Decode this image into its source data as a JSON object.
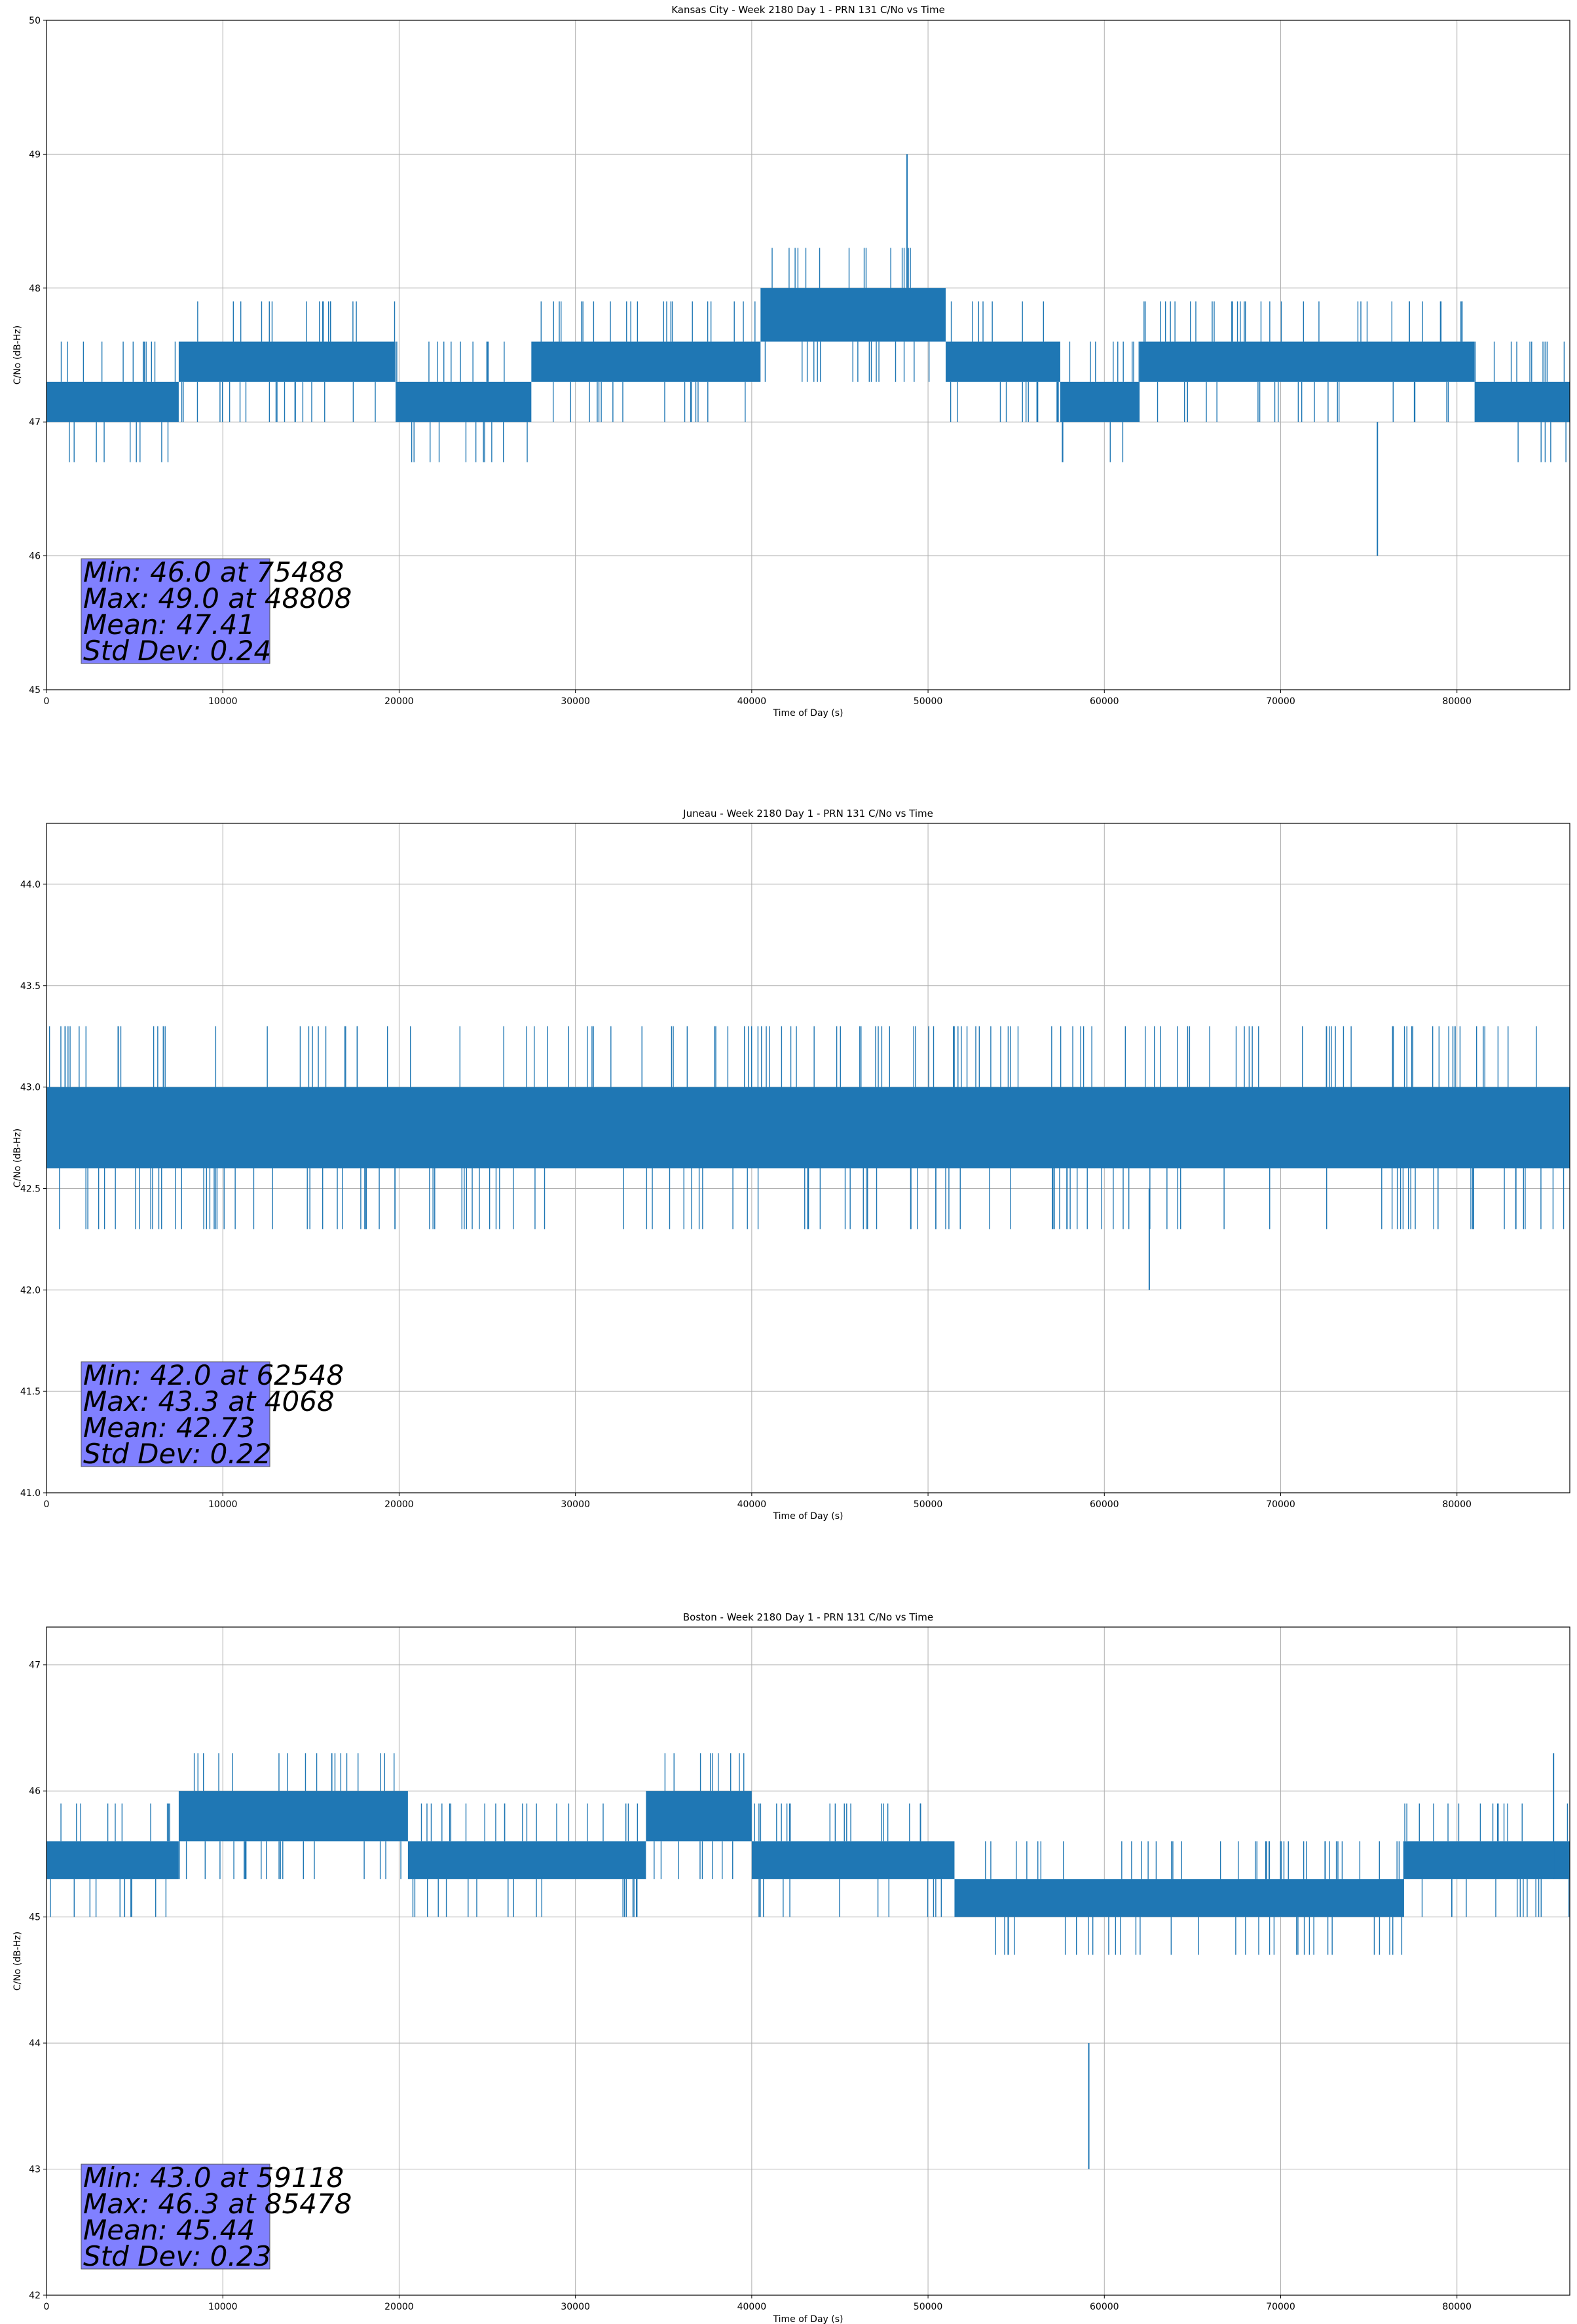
{
  "colors": {
    "series": "#1f77b4",
    "stats_box": "#8080ff",
    "grid": "#b0b0b0"
  },
  "chart_data": [
    {
      "type": "line",
      "title": "Kansas City - Week 2180 Day 1 - PRN 131 C/No vs Time",
      "xlabel": "Time of Day (s)",
      "ylabel": "C/No (dB-Hz)",
      "xlim": [
        0,
        86400
      ],
      "ylim": [
        45,
        50
      ],
      "xticks": [
        0,
        10000,
        20000,
        30000,
        40000,
        50000,
        60000,
        70000,
        80000
      ],
      "xtick_labels": [
        "0",
        "10000",
        "20000",
        "30000",
        "40000",
        "50000",
        "60000",
        "70000",
        "80000"
      ],
      "yticks": [
        45,
        46,
        47,
        48,
        49,
        50
      ],
      "ytick_labels": [
        "45",
        "46",
        "47",
        "48",
        "49",
        "50"
      ],
      "grid": true,
      "series": [
        {
          "name": "C/No",
          "segments": [
            {
              "x_start": 0,
              "x_end": 7500,
              "low": 47.0,
              "high": 47.3
            },
            {
              "x_start": 7500,
              "x_end": 19800,
              "low": 47.3,
              "high": 47.6
            },
            {
              "x_start": 19800,
              "x_end": 27500,
              "low": 47.0,
              "high": 47.3
            },
            {
              "x_start": 27500,
              "x_end": 40500,
              "low": 47.3,
              "high": 47.6
            },
            {
              "x_start": 40500,
              "x_end": 51000,
              "low": 47.6,
              "high": 48.0
            },
            {
              "x_start": 51000,
              "x_end": 57500,
              "low": 47.3,
              "high": 47.6
            },
            {
              "x_start": 57500,
              "x_end": 62000,
              "low": 47.0,
              "high": 47.3
            },
            {
              "x_start": 62000,
              "x_end": 81000,
              "low": 47.3,
              "high": 47.6
            },
            {
              "x_start": 81000,
              "x_end": 86400,
              "low": 47.0,
              "high": 47.3
            }
          ]
        }
      ],
      "stats": [
        "Min: 46.0 at 75488",
        "Max: 49.0 at 48808",
        "Mean: 47.41",
        "Std Dev: 0.24"
      ]
    },
    {
      "type": "line",
      "title": "Juneau - Week 2180 Day 1 - PRN 131 C/No vs Time",
      "xlabel": "Time of Day (s)",
      "ylabel": "C/No (dB-Hz)",
      "xlim": [
        0,
        86400
      ],
      "ylim": [
        41.0,
        44.3
      ],
      "xticks": [
        0,
        10000,
        20000,
        30000,
        40000,
        50000,
        60000,
        70000,
        80000
      ],
      "xtick_labels": [
        "0",
        "10000",
        "20000",
        "30000",
        "40000",
        "50000",
        "60000",
        "70000",
        "80000"
      ],
      "yticks": [
        41.0,
        41.5,
        42.0,
        42.5,
        43.0,
        43.5,
        44.0
      ],
      "ytick_labels": [
        "41.0",
        "41.5",
        "42.0",
        "42.5",
        "43.0",
        "43.5",
        "44.0"
      ],
      "grid": true,
      "series": [
        {
          "name": "C/No",
          "segments": [
            {
              "x_start": 0,
              "x_end": 86400,
              "low": 42.6,
              "high": 43.0
            }
          ]
        }
      ],
      "stats": [
        "Min: 42.0 at 62548",
        "Max: 43.3 at 4068",
        "Mean: 42.73",
        "Std Dev: 0.22"
      ]
    },
    {
      "type": "line",
      "title": "Boston - Week 2180 Day 1 - PRN 131 C/No vs Time",
      "xlabel": "Time of Day (s)",
      "ylabel": "C/No (dB-Hz)",
      "xlim": [
        0,
        86400
      ],
      "ylim": [
        42,
        47.3
      ],
      "xticks": [
        0,
        10000,
        20000,
        30000,
        40000,
        50000,
        60000,
        70000,
        80000
      ],
      "xtick_labels": [
        "0",
        "10000",
        "20000",
        "30000",
        "40000",
        "50000",
        "60000",
        "70000",
        "80000"
      ],
      "yticks": [
        42,
        43,
        44,
        45,
        46,
        47
      ],
      "ytick_labels": [
        "42",
        "43",
        "44",
        "45",
        "46",
        "47"
      ],
      "grid": true,
      "series": [
        {
          "name": "C/No",
          "segments": [
            {
              "x_start": 0,
              "x_end": 7500,
              "low": 45.3,
              "high": 45.6
            },
            {
              "x_start": 7500,
              "x_end": 20500,
              "low": 45.6,
              "high": 46.0
            },
            {
              "x_start": 20500,
              "x_end": 34000,
              "low": 45.3,
              "high": 45.6
            },
            {
              "x_start": 34000,
              "x_end": 40000,
              "low": 45.6,
              "high": 46.0
            },
            {
              "x_start": 40000,
              "x_end": 51500,
              "low": 45.3,
              "high": 45.6
            },
            {
              "x_start": 51500,
              "x_end": 77000,
              "low": 45.0,
              "high": 45.3
            },
            {
              "x_start": 77000,
              "x_end": 86400,
              "low": 45.3,
              "high": 45.6
            }
          ]
        }
      ],
      "stats": [
        "Min: 43.0 at 59118",
        "Max: 46.3 at 85478",
        "Mean: 45.44",
        "Std Dev: 0.23"
      ]
    }
  ]
}
